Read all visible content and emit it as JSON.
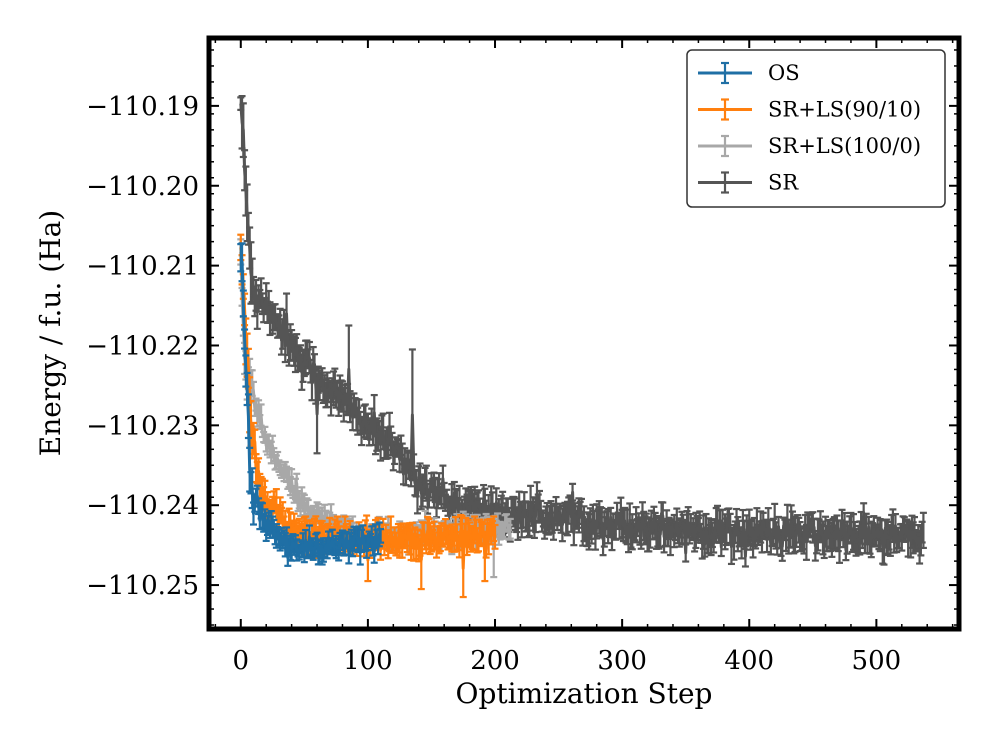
{
  "chart_data": {
    "type": "line",
    "title": "",
    "xlabel": "Optimization Step",
    "ylabel": "Energy / f.u. (Ha)",
    "xlim": [
      -25,
      565
    ],
    "ylim": [
      -110.2555,
      -110.1815
    ],
    "xticks": [
      0,
      100,
      200,
      300,
      400,
      500
    ],
    "xtick_labels": [
      "0",
      "100",
      "200",
      "300",
      "400",
      "500"
    ],
    "yticks": [
      -110.19,
      -110.2,
      -110.21,
      -110.22,
      -110.23,
      -110.24,
      -110.25
    ],
    "ytick_labels": [
      "−110.19",
      "−110.20",
      "−110.21",
      "−110.22",
      "−110.23",
      "−110.24",
      "−110.25"
    ],
    "legend_position": "top-right",
    "series": [
      {
        "name": "OS",
        "color": "#1f6fa5",
        "length": 110,
        "start": -110.207,
        "plateau": -110.2455,
        "tau": 7,
        "noise": 0.0012,
        "err": 0.0011,
        "anchors": [
          [
            0,
            -110.207
          ],
          [
            3,
            -110.218
          ],
          [
            7,
            -110.234
          ],
          [
            10,
            -110.239
          ],
          [
            15,
            -110.241
          ],
          [
            20,
            -110.2425
          ],
          [
            30,
            -110.244
          ],
          [
            45,
            -110.2455
          ],
          [
            60,
            -110.2455
          ],
          [
            80,
            -110.245
          ],
          [
            110,
            -110.2445
          ]
        ],
        "spikes": []
      },
      {
        "name": "SR+LS(90/10)",
        "color": "#ff7f0e",
        "length": 200,
        "anchors": [
          [
            0,
            -110.208
          ],
          [
            3,
            -110.216
          ],
          [
            7,
            -110.228
          ],
          [
            12,
            -110.236
          ],
          [
            20,
            -110.24
          ],
          [
            35,
            -110.2425
          ],
          [
            60,
            -110.244
          ],
          [
            100,
            -110.244
          ],
          [
            150,
            -110.2445
          ],
          [
            200,
            -110.2435
          ]
        ],
        "noise": 0.0013,
        "err": 0.0014,
        "spikes": [
          [
            100,
            -110.249
          ],
          [
            142,
            -110.25
          ],
          [
            175,
            -110.251
          ],
          [
            192,
            -110.249
          ]
        ]
      },
      {
        "name": "SR+LS(100/0)",
        "color": "#a8a8a8",
        "length": 212,
        "anchors": [
          [
            0,
            -110.209
          ],
          [
            3,
            -110.222
          ],
          [
            10,
            -110.227
          ],
          [
            20,
            -110.232
          ],
          [
            30,
            -110.235
          ],
          [
            45,
            -110.239
          ],
          [
            60,
            -110.2415
          ],
          [
            100,
            -110.244
          ],
          [
            150,
            -110.2435
          ],
          [
            212,
            -110.243
          ]
        ],
        "noise": 0.0011,
        "err": 0.001,
        "spikes": [
          [
            199,
            -110.2485
          ]
        ]
      },
      {
        "name": "SR",
        "color": "#555555",
        "length": 537,
        "anchors": [
          [
            0,
            -110.189
          ],
          [
            5,
            -110.204
          ],
          [
            10,
            -110.213
          ],
          [
            25,
            -110.216
          ],
          [
            40,
            -110.22
          ],
          [
            60,
            -110.224
          ],
          [
            80,
            -110.227
          ],
          [
            100,
            -110.23
          ],
          [
            120,
            -110.233
          ],
          [
            140,
            -110.237
          ],
          [
            170,
            -110.24
          ],
          [
            200,
            -110.241
          ],
          [
            250,
            -110.2415
          ],
          [
            300,
            -110.2425
          ],
          [
            400,
            -110.2435
          ],
          [
            537,
            -110.244
          ]
        ],
        "noise": 0.0016,
        "err": 0.0016,
        "spikes": [
          [
            0,
            -110.19
          ],
          [
            36,
            -110.214
          ],
          [
            85,
            -110.218
          ],
          [
            135,
            -110.221
          ],
          [
            60,
            -110.233
          ]
        ]
      }
    ]
  }
}
